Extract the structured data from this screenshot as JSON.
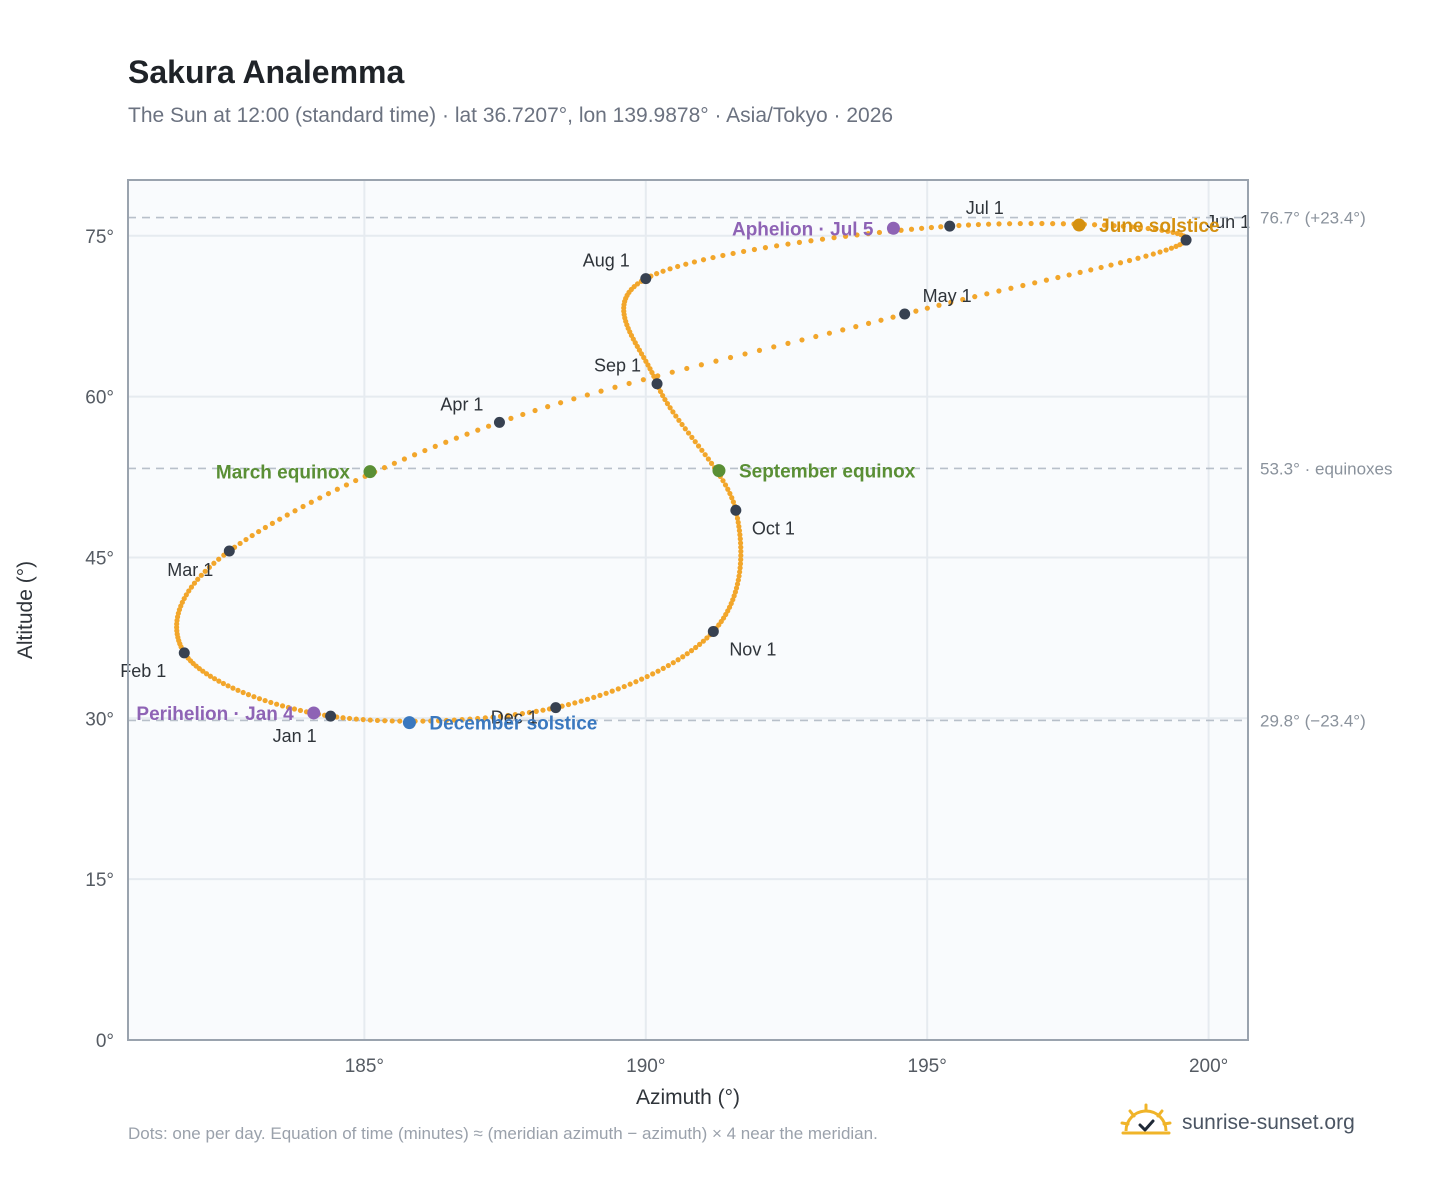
{
  "header": {
    "title": "Sakura Analemma",
    "subtitle": "The Sun at 12:00 (standard time) · lat 36.7207°, lon 139.9878° · Asia/Tokyo · 2026"
  },
  "footer": {
    "note": "Dots: one per day. Equation of time (minutes) ≈ (meridian azimuth − azimuth) × 4 near the meridian.",
    "brand": "sunrise-sunset.org",
    "brand_icon": "sun-check-logo-icon"
  },
  "colors": {
    "path": "#f2a62b",
    "month_marker": "#374151",
    "equinox": "#5a8f35",
    "june_solstice": "#d4900f",
    "december_solstice": "#3a78bf",
    "perihelion_aphelion": "#8e63b5",
    "reference_line": "#b8c0ca",
    "plot_background": "#f9fbfd",
    "grid": "#e6ebf0",
    "frame": "#9aa3ae"
  },
  "chart_data": {
    "type": "scatter",
    "xlabel": "Azimuth (°)",
    "ylabel": "Altitude (°)",
    "xlim": [
      180.8,
      200.7
    ],
    "ylim": [
      0,
      80.2
    ],
    "x_ticks": [
      185,
      190,
      195,
      200
    ],
    "x_tick_labels": [
      "185°",
      "190°",
      "195°",
      "200°"
    ],
    "y_ticks": [
      0,
      15,
      30,
      45,
      60,
      75
    ],
    "y_tick_labels": [
      "0°",
      "15°",
      "30°",
      "45°",
      "60°",
      "75°"
    ],
    "grid": true,
    "series": [
      {
        "name": "",
        "description_of_markers": "one dot per day",
        "points_at_month_start": [
          {
            "date": "Jan 1",
            "x": 184.4,
            "y": 30.2
          },
          {
            "date": "Feb 1",
            "x": 181.8,
            "y": 36.1
          },
          {
            "date": "Mar 1",
            "x": 182.6,
            "y": 45.6
          },
          {
            "date": "Apr 1",
            "x": 187.4,
            "y": 57.6
          },
          {
            "date": "May 1",
            "x": 194.6,
            "y": 67.7
          },
          {
            "date": "Jun 1",
            "x": 199.6,
            "y": 74.6
          },
          {
            "date": "Jul 1",
            "x": 195.4,
            "y": 75.9
          },
          {
            "date": "Aug 1",
            "x": 190.0,
            "y": 71.0
          },
          {
            "date": "Sep 1",
            "x": 190.2,
            "y": 61.2
          },
          {
            "date": "Oct 1",
            "x": 191.6,
            "y": 49.4
          },
          {
            "date": "Nov 1",
            "x": 191.2,
            "y": 38.1
          },
          {
            "date": "Dec 1",
            "x": 188.4,
            "y": 31.0
          }
        ]
      }
    ],
    "events": [
      {
        "label": "Perihelion",
        "date": "Jan 4",
        "x": 184.1,
        "y": 30.5,
        "label_side": "left",
        "color_key": "perihelion_aphelion"
      },
      {
        "label": "March equinox",
        "date": "",
        "x": 185.1,
        "y": 53.0,
        "label_side": "left",
        "color_key": "equinox"
      },
      {
        "label": "June solstice",
        "date": "",
        "x": 197.7,
        "y": 76.0,
        "label_side": "right",
        "color_key": "june_solstice"
      },
      {
        "label": "Aphelion",
        "date": "Jul 5",
        "x": 194.4,
        "y": 75.7,
        "label_side": "left",
        "color_key": "perihelion_aphelion"
      },
      {
        "label": "September equinox",
        "date": "",
        "x": 191.3,
        "y": 53.1,
        "label_side": "right",
        "color_key": "equinox"
      },
      {
        "label": "December solstice",
        "date": "",
        "x": 185.8,
        "y": 29.6,
        "label_side": "right",
        "color_key": "december_solstice"
      }
    ],
    "reference_lines": [
      {
        "y": 76.7,
        "label": "76.7° (+23.4°)"
      },
      {
        "y": 53.3,
        "label": "53.3° · equinoxes"
      },
      {
        "y": 29.8,
        "label": "29.8° (−23.4°)"
      }
    ]
  }
}
